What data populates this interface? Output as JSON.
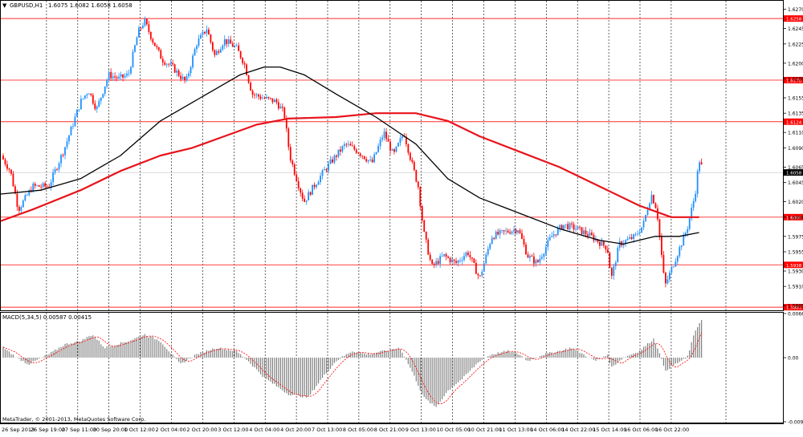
{
  "header": {
    "symbol_label": "GBPUSD,H1",
    "ohlc_text": "1.6075 1.6082 1.6058 1.6058",
    "macd_label": "MACD(5,34,5) 0.00587 0.00415",
    "copyright": "MetaTrader, © 2001-2013, MetaQuotes Software Corp."
  },
  "colors": {
    "background": "#ffffff",
    "bull_candle": "#1e8fff",
    "bear_candle": "#ff0000",
    "ma_slow": "#e8131b",
    "ma_fast": "#000000",
    "hline": "#ff2b2b",
    "grid": "#000000",
    "macd_hist": "#808080",
    "macd_signal": "#ff0000",
    "current_price_bg": "#000000",
    "level_bg": "#ff0000"
  },
  "price_axis": {
    "labels": [
      "1.6270",
      "1.6245",
      "1.6225",
      "1.6200",
      "1.6180",
      "1.6155",
      "1.6135",
      "1.6110",
      "1.6090",
      "1.6065",
      "1.6045",
      "1.6020",
      "1.6000",
      "1.5975",
      "1.5955",
      "1.5930",
      "1.5910",
      "1.5885"
    ],
    "hlines": [
      "1.6258",
      "1.6178",
      "1.6124",
      "1.6000",
      "1.5938",
      "1.5883"
    ],
    "current_price": "1.6058"
  },
  "macd_axis": {
    "labels": [
      "0.00664",
      "0.00",
      "-0.00965"
    ]
  },
  "time_axis": {
    "labels": [
      "26 Sep 2013",
      "26 Sep 19:00",
      "27 Sep 11:00",
      "30 Sep 20:00",
      "1 Oct 12:00",
      "2 Oct 04:00",
      "2 Oct 20:00",
      "3 Oct 12:00",
      "4 Oct 04:00",
      "4 Oct 20:00",
      "7 Oct 13:00",
      "8 Oct 05:00",
      "8 Oct 21:00",
      "9 Oct 13:00",
      "10 Oct 05:00",
      "10 Oct 21:00",
      "11 Oct 13:00",
      "14 Oct 06:00",
      "14 Oct 22:00",
      "15 Oct 14:00",
      "16 Oct 06:00",
      "16 Oct 22:00"
    ]
  },
  "chart_data": {
    "type": "candlestick",
    "series": [
      {
        "name": "GBPUSD,H1",
        "kind": "candles",
        "close_path": [
          [
            0,
            1.608
          ],
          [
            12,
            1.606
          ],
          [
            22,
            1.601
          ],
          [
            40,
            1.604
          ],
          [
            60,
            1.604
          ],
          [
            80,
            1.609
          ],
          [
            100,
            1.615
          ],
          [
            110,
            1.6165
          ],
          [
            120,
            1.614
          ],
          [
            135,
            1.6185
          ],
          [
            148,
            1.618
          ],
          [
            160,
            1.6185
          ],
          [
            172,
            1.624
          ],
          [
            180,
            1.6255
          ],
          [
            190,
            1.623
          ],
          [
            202,
            1.6205
          ],
          [
            215,
            1.6195
          ],
          [
            232,
            1.6175
          ],
          [
            245,
            1.6225
          ],
          [
            258,
            1.6245
          ],
          [
            268,
            1.621
          ],
          [
            280,
            1.623
          ],
          [
            295,
            1.622
          ],
          [
            305,
            1.62
          ],
          [
            315,
            1.616
          ],
          [
            328,
            1.6155
          ],
          [
            345,
            1.615
          ],
          [
            355,
            1.6135
          ],
          [
            362,
            1.608
          ],
          [
            372,
            1.6045
          ],
          [
            380,
            1.602
          ],
          [
            392,
            1.604
          ],
          [
            405,
            1.606
          ],
          [
            420,
            1.608
          ],
          [
            432,
            1.6095
          ],
          [
            448,
            1.6085
          ],
          [
            465,
            1.607
          ],
          [
            480,
            1.611
          ],
          [
            492,
            1.608
          ],
          [
            505,
            1.611
          ],
          [
            515,
            1.607
          ],
          [
            523,
            1.604
          ],
          [
            530,
            1.598
          ],
          [
            540,
            1.5935
          ],
          [
            555,
            1.595
          ],
          [
            570,
            1.594
          ],
          [
            585,
            1.5955
          ],
          [
            600,
            1.592
          ],
          [
            615,
            1.5975
          ],
          [
            630,
            1.598
          ],
          [
            648,
            1.5985
          ],
          [
            660,
            1.595
          ],
          [
            672,
            1.594
          ],
          [
            690,
            1.5975
          ],
          [
            705,
            1.599
          ],
          [
            722,
            1.5985
          ],
          [
            740,
            1.5975
          ],
          [
            760,
            1.596
          ],
          [
            765,
            1.592
          ],
          [
            775,
            1.5965
          ],
          [
            795,
            1.5975
          ],
          [
            805,
            1.599
          ],
          [
            815,
            1.603
          ],
          [
            822,
            1.601
          ],
          [
            832,
            1.591
          ],
          [
            845,
            1.5945
          ],
          [
            860,
            1.5985
          ],
          [
            870,
            1.603
          ],
          [
            875,
            1.6075
          ],
          [
            880,
            1.606
          ]
        ],
        "noise": 0.0009
      },
      {
        "name": "MA slow",
        "kind": "line",
        "color": "#e8131b",
        "points": [
          [
            0,
            1.5995
          ],
          [
            40,
            1.601
          ],
          [
            100,
            1.6035
          ],
          [
            150,
            1.606
          ],
          [
            200,
            1.608
          ],
          [
            240,
            1.609
          ],
          [
            280,
            1.6105
          ],
          [
            320,
            1.612
          ],
          [
            360,
            1.6128
          ],
          [
            420,
            1.613
          ],
          [
            470,
            1.6135
          ],
          [
            520,
            1.6135
          ],
          [
            560,
            1.6125
          ],
          [
            600,
            1.6105
          ],
          [
            650,
            1.6085
          ],
          [
            700,
            1.6065
          ],
          [
            750,
            1.604
          ],
          [
            800,
            1.6015
          ],
          [
            840,
            1.6
          ],
          [
            875,
            1.6
          ]
        ]
      },
      {
        "name": "MA fast",
        "kind": "line",
        "color": "#000000",
        "points": [
          [
            0,
            1.603
          ],
          [
            50,
            1.6035
          ],
          [
            100,
            1.605
          ],
          [
            150,
            1.608
          ],
          [
            200,
            1.6125
          ],
          [
            250,
            1.6155
          ],
          [
            300,
            1.6185
          ],
          [
            330,
            1.6195
          ],
          [
            350,
            1.6195
          ],
          [
            380,
            1.6185
          ],
          [
            420,
            1.616
          ],
          [
            470,
            1.613
          ],
          [
            520,
            1.6095
          ],
          [
            560,
            1.605
          ],
          [
            600,
            1.6025
          ],
          [
            650,
            1.6005
          ],
          [
            700,
            1.5985
          ],
          [
            750,
            1.597
          ],
          [
            780,
            1.5965
          ],
          [
            820,
            1.5975
          ],
          [
            850,
            1.5975
          ],
          [
            875,
            1.598
          ]
        ]
      }
    ],
    "macd": {
      "histogram_path": [
        [
          0,
          0.0018
        ],
        [
          20,
          0.0
        ],
        [
          35,
          -0.001
        ],
        [
          60,
          0.0005
        ],
        [
          80,
          0.002
        ],
        [
          100,
          0.0025
        ],
        [
          115,
          0.0035
        ],
        [
          130,
          0.0015
        ],
        [
          145,
          0.002
        ],
        [
          160,
          0.0025
        ],
        [
          180,
          0.0035
        ],
        [
          200,
          0.0025
        ],
        [
          225,
          -0.001
        ],
        [
          245,
          0.0005
        ],
        [
          270,
          0.0015
        ],
        [
          295,
          0.001
        ],
        [
          310,
          -0.0005
        ],
        [
          330,
          -0.003
        ],
        [
          360,
          -0.0055
        ],
        [
          385,
          -0.006
        ],
        [
          400,
          -0.0035
        ],
        [
          420,
          -0.0005
        ],
        [
          440,
          0.001
        ],
        [
          460,
          0.0005
        ],
        [
          480,
          0.001
        ],
        [
          500,
          0.0015
        ],
        [
          515,
          -0.002
        ],
        [
          530,
          -0.006
        ],
        [
          545,
          -0.0075
        ],
        [
          560,
          -0.005
        ],
        [
          580,
          -0.003
        ],
        [
          600,
          -0.0005
        ],
        [
          615,
          0.0005
        ],
        [
          635,
          0.001
        ],
        [
          650,
          0.0005
        ],
        [
          660,
          -0.0005
        ],
        [
          680,
          0.0005
        ],
        [
          700,
          0.001
        ],
        [
          715,
          0.0015
        ],
        [
          730,
          0.0005
        ],
        [
          745,
          -0.0005
        ],
        [
          760,
          0.0005
        ],
        [
          765,
          -0.0015
        ],
        [
          780,
          0.0
        ],
        [
          800,
          0.001
        ],
        [
          818,
          0.0028
        ],
        [
          825,
          0.001
        ],
        [
          832,
          -0.002
        ],
        [
          845,
          -0.001
        ],
        [
          860,
          0.0
        ],
        [
          870,
          0.004
        ],
        [
          878,
          0.0058
        ]
      ],
      "signal_lag": 6
    },
    "xlim": [
      0,
      980
    ],
    "price_range": [
      1.588,
      1.628
    ],
    "macd_range": [
      -0.00965,
      0.00664
    ],
    "grid": true
  }
}
